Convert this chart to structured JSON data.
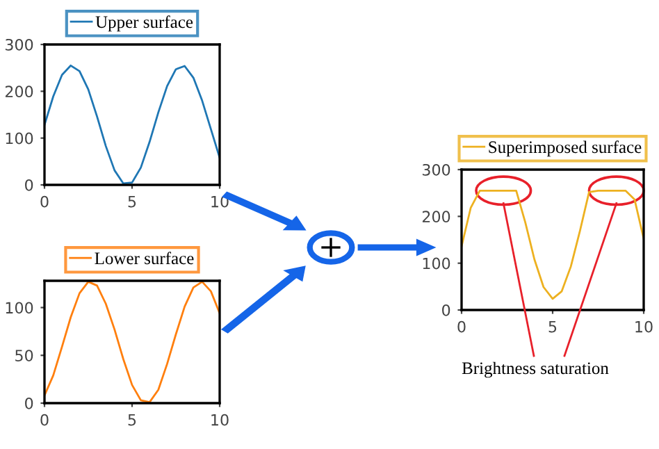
{
  "chart_data": [
    {
      "type": "line",
      "x": [
        0,
        0.5,
        1,
        1.5,
        2,
        2.5,
        3,
        3.5,
        4,
        4.5,
        5,
        5.5,
        6,
        6.5,
        7,
        7.5,
        8,
        8.5,
        9,
        9.5,
        10
      ],
      "series": [
        {
          "name": "Upper surface",
          "color": "#1f77b4",
          "values": [
            128,
            189,
            235,
            255,
            243,
            204,
            146,
            83,
            31,
            3,
            5,
            37,
            92,
            155,
            211,
            247,
            254,
            229,
            180,
            119,
            58
          ]
        }
      ],
      "xlim": [
        0,
        10
      ],
      "ylim": [
        0,
        300
      ],
      "xticks": [
        0,
        5,
        10
      ],
      "yticks": [
        0,
        100,
        200,
        300
      ],
      "legend": "top",
      "grid": false
    },
    {
      "type": "line",
      "x": [
        0,
        0.5,
        1,
        1.5,
        2,
        2.5,
        3,
        3.5,
        4,
        4.5,
        5,
        5.5,
        6,
        6.5,
        7,
        7.5,
        8,
        8.5,
        9,
        9.5,
        10
      ],
      "series": [
        {
          "name": "Lower surface",
          "color": "#ff7f0e",
          "values": [
            8,
            29,
            59,
            90,
            115,
            127,
            123,
            104,
            77,
            46,
            19,
            3,
            1,
            14,
            41,
            72,
            101,
            121,
            127,
            117,
            94
          ]
        }
      ],
      "xlim": [
        0,
        10
      ],
      "ylim": [
        0,
        128
      ],
      "xticks": [
        0,
        5,
        10
      ],
      "yticks": [
        0,
        50,
        100
      ],
      "legend": "top",
      "grid": false
    },
    {
      "type": "line",
      "x": [
        0,
        0.5,
        1,
        1.5,
        2,
        2.5,
        3,
        3.5,
        4,
        4.5,
        5,
        5.5,
        6,
        6.5,
        7,
        7.5,
        8,
        8.5,
        9,
        9.5,
        10
      ],
      "series": [
        {
          "name": "Superimposed surface",
          "color": "#edb120",
          "values": [
            136,
            218,
            255,
            255,
            255,
            255,
            255,
            187,
            108,
            49,
            24,
            40,
            93,
            169,
            252,
            255,
            255,
            255,
            255,
            236,
            152
          ]
        }
      ],
      "xlim": [
        0,
        10
      ],
      "ylim": [
        0,
        300
      ],
      "xticks": [
        0,
        5,
        10
      ],
      "yticks": [
        0,
        100,
        200,
        300
      ],
      "legend": "top",
      "grid": false,
      "annotations": [
        "Brightness saturation"
      ]
    }
  ]
}
